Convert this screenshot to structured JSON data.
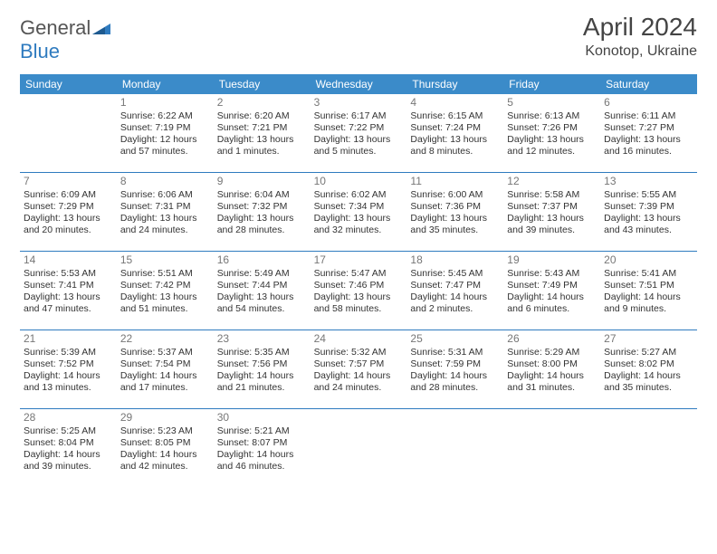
{
  "logo": {
    "text1": "General",
    "text2": "Blue"
  },
  "title": "April 2024",
  "location": "Konotop, Ukraine",
  "header_bg": "#3b8bc9",
  "divider_color": "#2f7bbf",
  "day_names": [
    "Sunday",
    "Monday",
    "Tuesday",
    "Wednesday",
    "Thursday",
    "Friday",
    "Saturday"
  ],
  "weeks": [
    [
      null,
      {
        "n": "1",
        "sr": "Sunrise: 6:22 AM",
        "ss": "Sunset: 7:19 PM",
        "d1": "Daylight: 12 hours",
        "d2": "and 57 minutes."
      },
      {
        "n": "2",
        "sr": "Sunrise: 6:20 AM",
        "ss": "Sunset: 7:21 PM",
        "d1": "Daylight: 13 hours",
        "d2": "and 1 minutes."
      },
      {
        "n": "3",
        "sr": "Sunrise: 6:17 AM",
        "ss": "Sunset: 7:22 PM",
        "d1": "Daylight: 13 hours",
        "d2": "and 5 minutes."
      },
      {
        "n": "4",
        "sr": "Sunrise: 6:15 AM",
        "ss": "Sunset: 7:24 PM",
        "d1": "Daylight: 13 hours",
        "d2": "and 8 minutes."
      },
      {
        "n": "5",
        "sr": "Sunrise: 6:13 AM",
        "ss": "Sunset: 7:26 PM",
        "d1": "Daylight: 13 hours",
        "d2": "and 12 minutes."
      },
      {
        "n": "6",
        "sr": "Sunrise: 6:11 AM",
        "ss": "Sunset: 7:27 PM",
        "d1": "Daylight: 13 hours",
        "d2": "and 16 minutes."
      }
    ],
    [
      {
        "n": "7",
        "sr": "Sunrise: 6:09 AM",
        "ss": "Sunset: 7:29 PM",
        "d1": "Daylight: 13 hours",
        "d2": "and 20 minutes."
      },
      {
        "n": "8",
        "sr": "Sunrise: 6:06 AM",
        "ss": "Sunset: 7:31 PM",
        "d1": "Daylight: 13 hours",
        "d2": "and 24 minutes."
      },
      {
        "n": "9",
        "sr": "Sunrise: 6:04 AM",
        "ss": "Sunset: 7:32 PM",
        "d1": "Daylight: 13 hours",
        "d2": "and 28 minutes."
      },
      {
        "n": "10",
        "sr": "Sunrise: 6:02 AM",
        "ss": "Sunset: 7:34 PM",
        "d1": "Daylight: 13 hours",
        "d2": "and 32 minutes."
      },
      {
        "n": "11",
        "sr": "Sunrise: 6:00 AM",
        "ss": "Sunset: 7:36 PM",
        "d1": "Daylight: 13 hours",
        "d2": "and 35 minutes."
      },
      {
        "n": "12",
        "sr": "Sunrise: 5:58 AM",
        "ss": "Sunset: 7:37 PM",
        "d1": "Daylight: 13 hours",
        "d2": "and 39 minutes."
      },
      {
        "n": "13",
        "sr": "Sunrise: 5:55 AM",
        "ss": "Sunset: 7:39 PM",
        "d1": "Daylight: 13 hours",
        "d2": "and 43 minutes."
      }
    ],
    [
      {
        "n": "14",
        "sr": "Sunrise: 5:53 AM",
        "ss": "Sunset: 7:41 PM",
        "d1": "Daylight: 13 hours",
        "d2": "and 47 minutes."
      },
      {
        "n": "15",
        "sr": "Sunrise: 5:51 AM",
        "ss": "Sunset: 7:42 PM",
        "d1": "Daylight: 13 hours",
        "d2": "and 51 minutes."
      },
      {
        "n": "16",
        "sr": "Sunrise: 5:49 AM",
        "ss": "Sunset: 7:44 PM",
        "d1": "Daylight: 13 hours",
        "d2": "and 54 minutes."
      },
      {
        "n": "17",
        "sr": "Sunrise: 5:47 AM",
        "ss": "Sunset: 7:46 PM",
        "d1": "Daylight: 13 hours",
        "d2": "and 58 minutes."
      },
      {
        "n": "18",
        "sr": "Sunrise: 5:45 AM",
        "ss": "Sunset: 7:47 PM",
        "d1": "Daylight: 14 hours",
        "d2": "and 2 minutes."
      },
      {
        "n": "19",
        "sr": "Sunrise: 5:43 AM",
        "ss": "Sunset: 7:49 PM",
        "d1": "Daylight: 14 hours",
        "d2": "and 6 minutes."
      },
      {
        "n": "20",
        "sr": "Sunrise: 5:41 AM",
        "ss": "Sunset: 7:51 PM",
        "d1": "Daylight: 14 hours",
        "d2": "and 9 minutes."
      }
    ],
    [
      {
        "n": "21",
        "sr": "Sunrise: 5:39 AM",
        "ss": "Sunset: 7:52 PM",
        "d1": "Daylight: 14 hours",
        "d2": "and 13 minutes."
      },
      {
        "n": "22",
        "sr": "Sunrise: 5:37 AM",
        "ss": "Sunset: 7:54 PM",
        "d1": "Daylight: 14 hours",
        "d2": "and 17 minutes."
      },
      {
        "n": "23",
        "sr": "Sunrise: 5:35 AM",
        "ss": "Sunset: 7:56 PM",
        "d1": "Daylight: 14 hours",
        "d2": "and 21 minutes."
      },
      {
        "n": "24",
        "sr": "Sunrise: 5:32 AM",
        "ss": "Sunset: 7:57 PM",
        "d1": "Daylight: 14 hours",
        "d2": "and 24 minutes."
      },
      {
        "n": "25",
        "sr": "Sunrise: 5:31 AM",
        "ss": "Sunset: 7:59 PM",
        "d1": "Daylight: 14 hours",
        "d2": "and 28 minutes."
      },
      {
        "n": "26",
        "sr": "Sunrise: 5:29 AM",
        "ss": "Sunset: 8:00 PM",
        "d1": "Daylight: 14 hours",
        "d2": "and 31 minutes."
      },
      {
        "n": "27",
        "sr": "Sunrise: 5:27 AM",
        "ss": "Sunset: 8:02 PM",
        "d1": "Daylight: 14 hours",
        "d2": "and 35 minutes."
      }
    ],
    [
      {
        "n": "28",
        "sr": "Sunrise: 5:25 AM",
        "ss": "Sunset: 8:04 PM",
        "d1": "Daylight: 14 hours",
        "d2": "and 39 minutes."
      },
      {
        "n": "29",
        "sr": "Sunrise: 5:23 AM",
        "ss": "Sunset: 8:05 PM",
        "d1": "Daylight: 14 hours",
        "d2": "and 42 minutes."
      },
      {
        "n": "30",
        "sr": "Sunrise: 5:21 AM",
        "ss": "Sunset: 8:07 PM",
        "d1": "Daylight: 14 hours",
        "d2": "and 46 minutes."
      },
      null,
      null,
      null,
      null
    ]
  ]
}
